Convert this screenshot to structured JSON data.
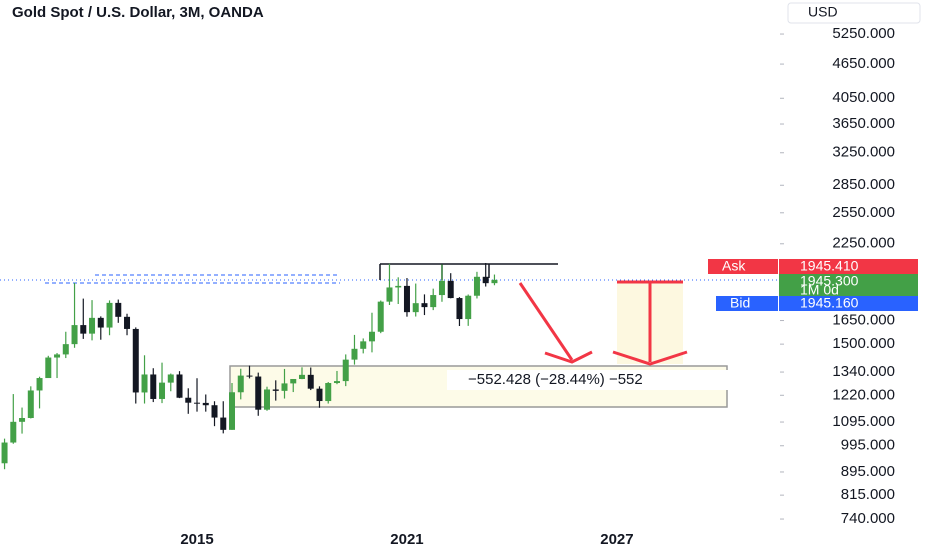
{
  "chart_data": {
    "type": "candlestick",
    "title": "Gold Spot / U.S. Dollar, 3M, OANDA",
    "currency": "USD",
    "log_scale": true,
    "up_color": "#43a047",
    "down_color": "#131722",
    "x": [
      2009.25,
      2009.5,
      2009.75,
      2010,
      2010.25,
      2010.5,
      2010.75,
      2011,
      2011.25,
      2011.5,
      2011.75,
      2012,
      2012.25,
      2012.5,
      2012.75,
      2013,
      2013.25,
      2013.5,
      2013.75,
      2014,
      2014.25,
      2014.5,
      2014.75,
      2015,
      2015.25,
      2015.5,
      2015.75,
      2016,
      2016.25,
      2016.5,
      2016.75,
      2017,
      2017.25,
      2017.5,
      2017.75,
      2018,
      2018.25,
      2018.5,
      2018.75,
      2019,
      2019.25,
      2019.5,
      2019.75,
      2020,
      2020.25,
      2020.5,
      2020.75,
      2021,
      2021.25,
      2021.5,
      2021.75,
      2022,
      2022.25,
      2022.5,
      2022.75,
      2023,
      2023.25,
      2023.5
    ],
    "open": [
      919,
      927,
      1008,
      1096,
      1113,
      1244,
      1308,
      1421,
      1439,
      1500,
      1620,
      1565,
      1668,
      1604,
      1772,
      1675,
      1595,
      1234,
      1327,
      1202,
      1284,
      1327,
      1208,
      1184,
      1183,
      1172,
      1115,
      1061,
      1235,
      1321,
      1316,
      1151,
      1249,
      1242,
      1280,
      1303,
      1325,
      1253,
      1192,
      1282,
      1292,
      1409,
      1472,
      1517,
      1577,
      1781,
      1886,
      1898,
      1707,
      1770,
      1742,
      1829,
      1937,
      1807,
      1660,
      1824,
      1969,
      1919
    ],
    "high": [
      1007,
      1024,
      1226,
      1161,
      1265,
      1315,
      1431,
      1447,
      1577,
      1921,
      1803,
      1792,
      1678,
      1790,
      1796,
      1696,
      1605,
      1434,
      1361,
      1392,
      1332,
      1345,
      1255,
      1307,
      1224,
      1191,
      1191,
      1282,
      1358,
      1375,
      1337,
      1263,
      1296,
      1357,
      1303,
      1366,
      1365,
      1265,
      1287,
      1346,
      1439,
      1557,
      1535,
      1703,
      1789,
      2075,
      1965,
      1959,
      1916,
      1834,
      1877,
      2070,
      1998,
      1814,
      1833,
      2009,
      2082,
      1987
    ],
    "low": [
      865,
      905,
      1003,
      1045,
      1111,
      1157,
      1314,
      1308,
      1418,
      1478,
      1532,
      1523,
      1527,
      1555,
      1635,
      1555,
      1180,
      1180,
      1187,
      1182,
      1240,
      1206,
      1132,
      1142,
      1142,
      1077,
      1046,
      1061,
      1200,
      1306,
      1123,
      1146,
      1194,
      1204,
      1236,
      1302,
      1246,
      1160,
      1180,
      1276,
      1266,
      1381,
      1445,
      1451,
      1568,
      1757,
      1764,
      1676,
      1677,
      1687,
      1721,
      1780,
      1805,
      1614,
      1615,
      1804,
      1893,
      1903
    ],
    "close": [
      927,
      1008,
      1096,
      1113,
      1244,
      1308,
      1421,
      1439,
      1500,
      1620,
      1565,
      1668,
      1604,
      1772,
      1675,
      1595,
      1234,
      1327,
      1202,
      1284,
      1327,
      1208,
      1184,
      1183,
      1172,
      1115,
      1061,
      1235,
      1321,
      1316,
      1151,
      1249,
      1242,
      1280,
      1303,
      1325,
      1253,
      1192,
      1282,
      1292,
      1409,
      1472,
      1517,
      1577,
      1781,
      1886,
      1898,
      1707,
      1770,
      1742,
      1829,
      1937,
      1807,
      1660,
      1824,
      1969,
      1919,
      1945
    ],
    "xlim": [
      2009.37,
      2031.66
    ],
    "xticks": [
      2015,
      2021,
      2027
    ],
    "ylim": [
      653,
      6024
    ],
    "yticks": [
      {
        "value": 5250,
        "label": "5250.000"
      },
      {
        "value": 4650,
        "label": "4650.000"
      },
      {
        "value": 4050,
        "label": "4050.000"
      },
      {
        "value": 3650,
        "label": "3650.000"
      },
      {
        "value": 3250,
        "label": "3250.000"
      },
      {
        "value": 2850,
        "label": "2850.000"
      },
      {
        "value": 2550,
        "label": "2550.000"
      },
      {
        "value": 2250,
        "label": "2250.000"
      },
      {
        "value": 1650,
        "label": "1650.000"
      },
      {
        "value": 1500,
        "label": "1500.000"
      },
      {
        "value": 1340,
        "label": "1340.000"
      },
      {
        "value": 1220,
        "label": "1220.000"
      },
      {
        "value": 1095,
        "label": "1095.000"
      },
      {
        "value": 995,
        "label": "995.000"
      },
      {
        "value": 895,
        "label": "895.000"
      },
      {
        "value": 815,
        "label": "815.000"
      },
      {
        "value": 740,
        "label": "740.000"
      }
    ],
    "ask": {
      "label": "Ask",
      "price": "1945.410"
    },
    "last": {
      "price": "1945.300",
      "countdown": "1M 0d"
    },
    "bid": {
      "label": "Bid",
      "price": "1945.160"
    },
    "measure_label": "−552.428 (−28.44%) −552"
  }
}
